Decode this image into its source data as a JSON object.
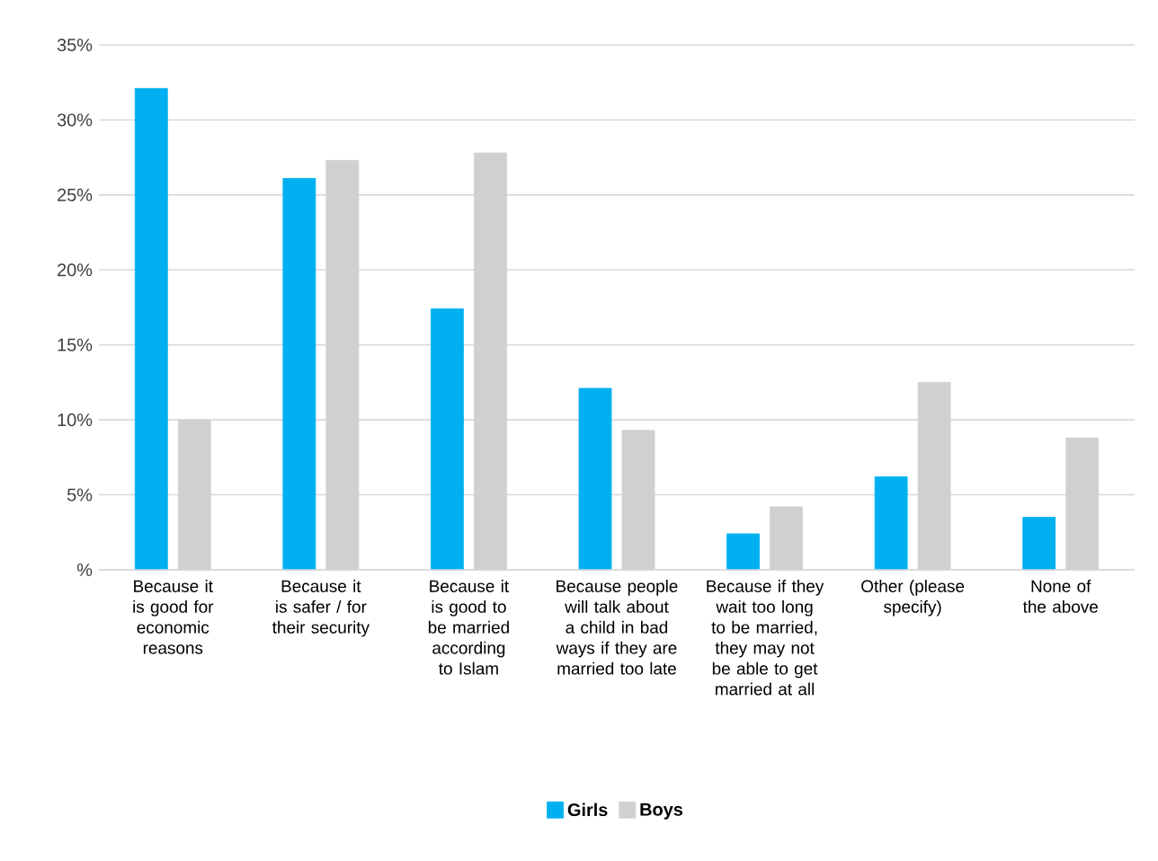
{
  "chart_data": {
    "type": "bar",
    "categories": [
      "Because it is good for economic reasons",
      "Because it is safer / for their security",
      "Because it is good to be married according to Islam",
      "Because people will talk about a child in bad ways if they are married too late",
      "Because if they wait too long to be married, they may not be able to get married at all",
      "Other (please specify)",
      "None of the above"
    ],
    "series": [
      {
        "name": "Girls",
        "color": "#00b0f0",
        "values": [
          32.1,
          26.1,
          17.4,
          12.1,
          2.4,
          6.2,
          3.5
        ]
      },
      {
        "name": "Boys",
        "color": "#d0d0d2",
        "values": [
          10.0,
          27.3,
          27.8,
          9.3,
          4.2,
          12.5,
          8.8
        ]
      }
    ],
    "ylim": [
      0,
      35
    ],
    "yticks": [
      {
        "value": 0,
        "label": "%"
      },
      {
        "value": 5,
        "label": "5%"
      },
      {
        "value": 10,
        "label": "10%"
      },
      {
        "value": 15,
        "label": "15%"
      },
      {
        "value": 20,
        "label": "20%"
      },
      {
        "value": 25,
        "label": "25%"
      },
      {
        "value": 30,
        "label": "30%"
      },
      {
        "value": 35,
        "label": "35%"
      }
    ],
    "grid": "y",
    "legend": "bottom"
  }
}
